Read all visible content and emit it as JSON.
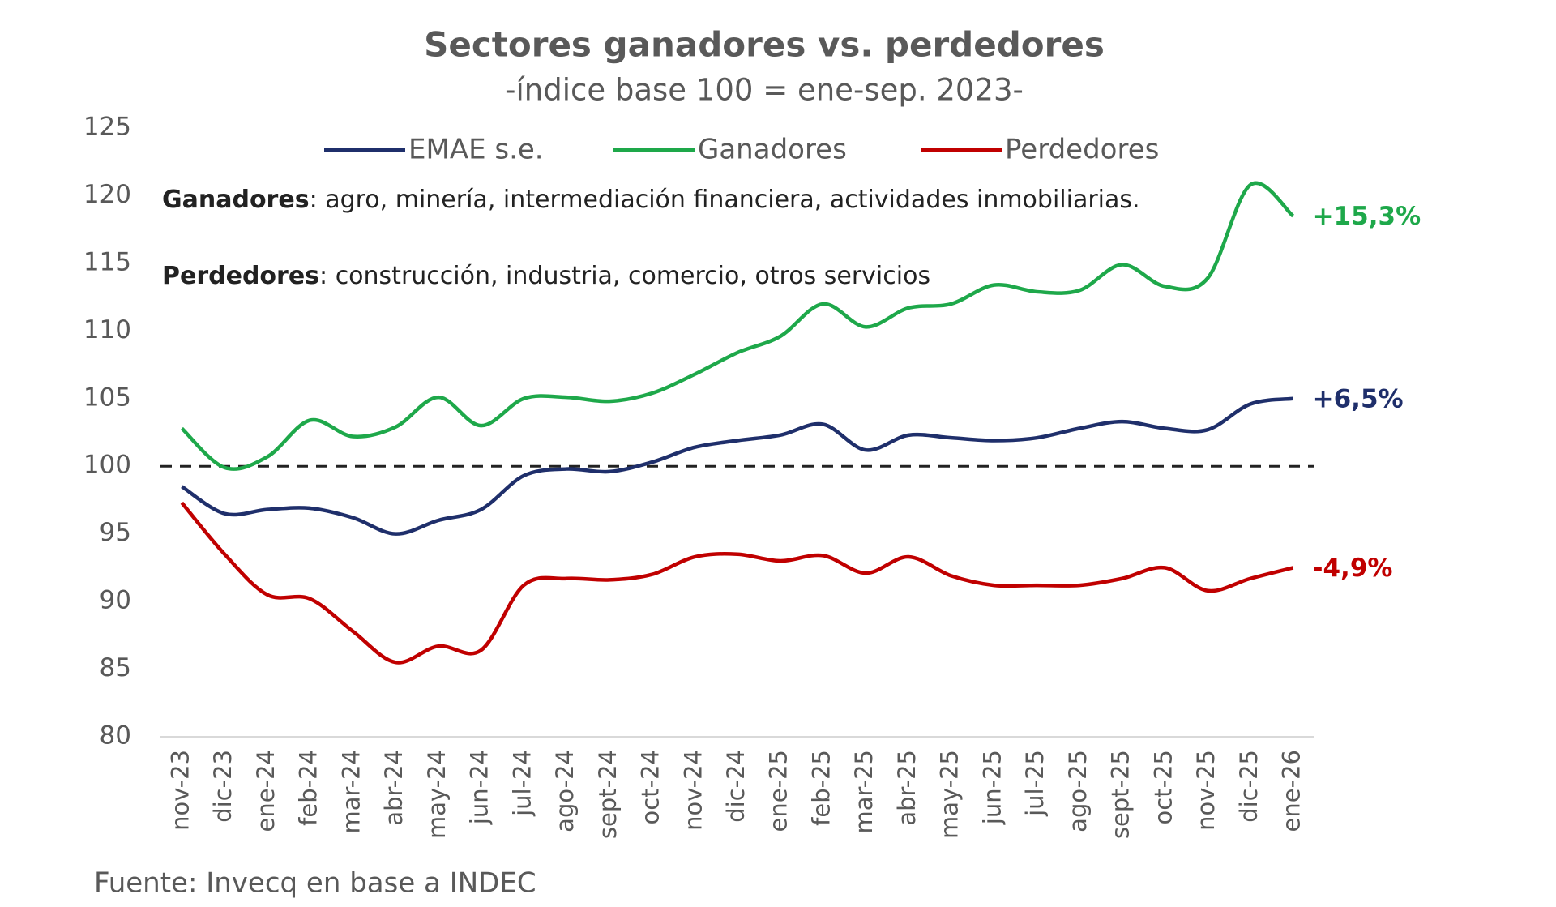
{
  "chart_data": {
    "type": "line",
    "title": "Sectores ganadores vs. perdedores",
    "subtitle": "-índice base 100 = ene-sep. 2023-",
    "categories": [
      "nov-23",
      "dic-23",
      "ene-24",
      "feb-24",
      "mar-24",
      "abr-24",
      "may-24",
      "jun-24",
      "jul-24",
      "ago-24",
      "sept-24",
      "oct-24",
      "nov-24",
      "dic-24",
      "ene-25",
      "feb-25",
      "mar-25",
      "abr-25",
      "may-25",
      "jun-25",
      "jul-25",
      "ago-25",
      "sept-25",
      "oct-25",
      "nov-25",
      "dic-25",
      "ene-26"
    ],
    "series": [
      {
        "name": "EMAE s.e.",
        "color": "#1f2f6b",
        "values": [
          98.5,
          96.5,
          96.8,
          96.9,
          96.2,
          95.0,
          96.0,
          96.8,
          99.3,
          99.8,
          99.6,
          100.3,
          101.4,
          101.9,
          102.3,
          103.1,
          101.2,
          102.3,
          102.1,
          101.9,
          102.1,
          102.8,
          103.3,
          102.8,
          102.7,
          104.6,
          105.0
        ],
        "end_label": "+6,5%"
      },
      {
        "name": "Ganadores",
        "color": "#1ea84a",
        "values": [
          102.8,
          99.9,
          100.7,
          103.4,
          102.2,
          102.9,
          105.1,
          103.0,
          105.0,
          105.1,
          104.8,
          105.4,
          106.8,
          108.4,
          109.6,
          112.0,
          110.3,
          111.7,
          112.0,
          113.4,
          112.9,
          113.0,
          114.9,
          113.3,
          113.9,
          120.8,
          118.5
        ],
        "end_label": "+15,3%"
      },
      {
        "name": "Perdedores",
        "color": "#c00000",
        "values": [
          97.3,
          93.5,
          90.5,
          90.2,
          87.8,
          85.5,
          86.7,
          86.4,
          91.2,
          91.7,
          91.6,
          92.0,
          93.3,
          93.5,
          93.0,
          93.4,
          92.1,
          93.3,
          91.9,
          91.2,
          91.2,
          91.2,
          91.7,
          92.5,
          90.8,
          91.7,
          92.5
        ],
        "end_label": "-4,9%"
      }
    ],
    "reference_line": 100,
    "ylim": [
      80,
      125
    ],
    "yticks": [
      80,
      85,
      90,
      95,
      100,
      105,
      110,
      115,
      120,
      125
    ],
    "notes": [
      {
        "bold": "Ganadores",
        "text": ": agro, minería, intermediación financiera, actividades inmobiliarias."
      },
      {
        "bold": "Perdedores",
        "text": ": construcción, industria, comercio, otros servicios"
      }
    ],
    "source": "Fuente: Invecq en base a INDEC"
  }
}
